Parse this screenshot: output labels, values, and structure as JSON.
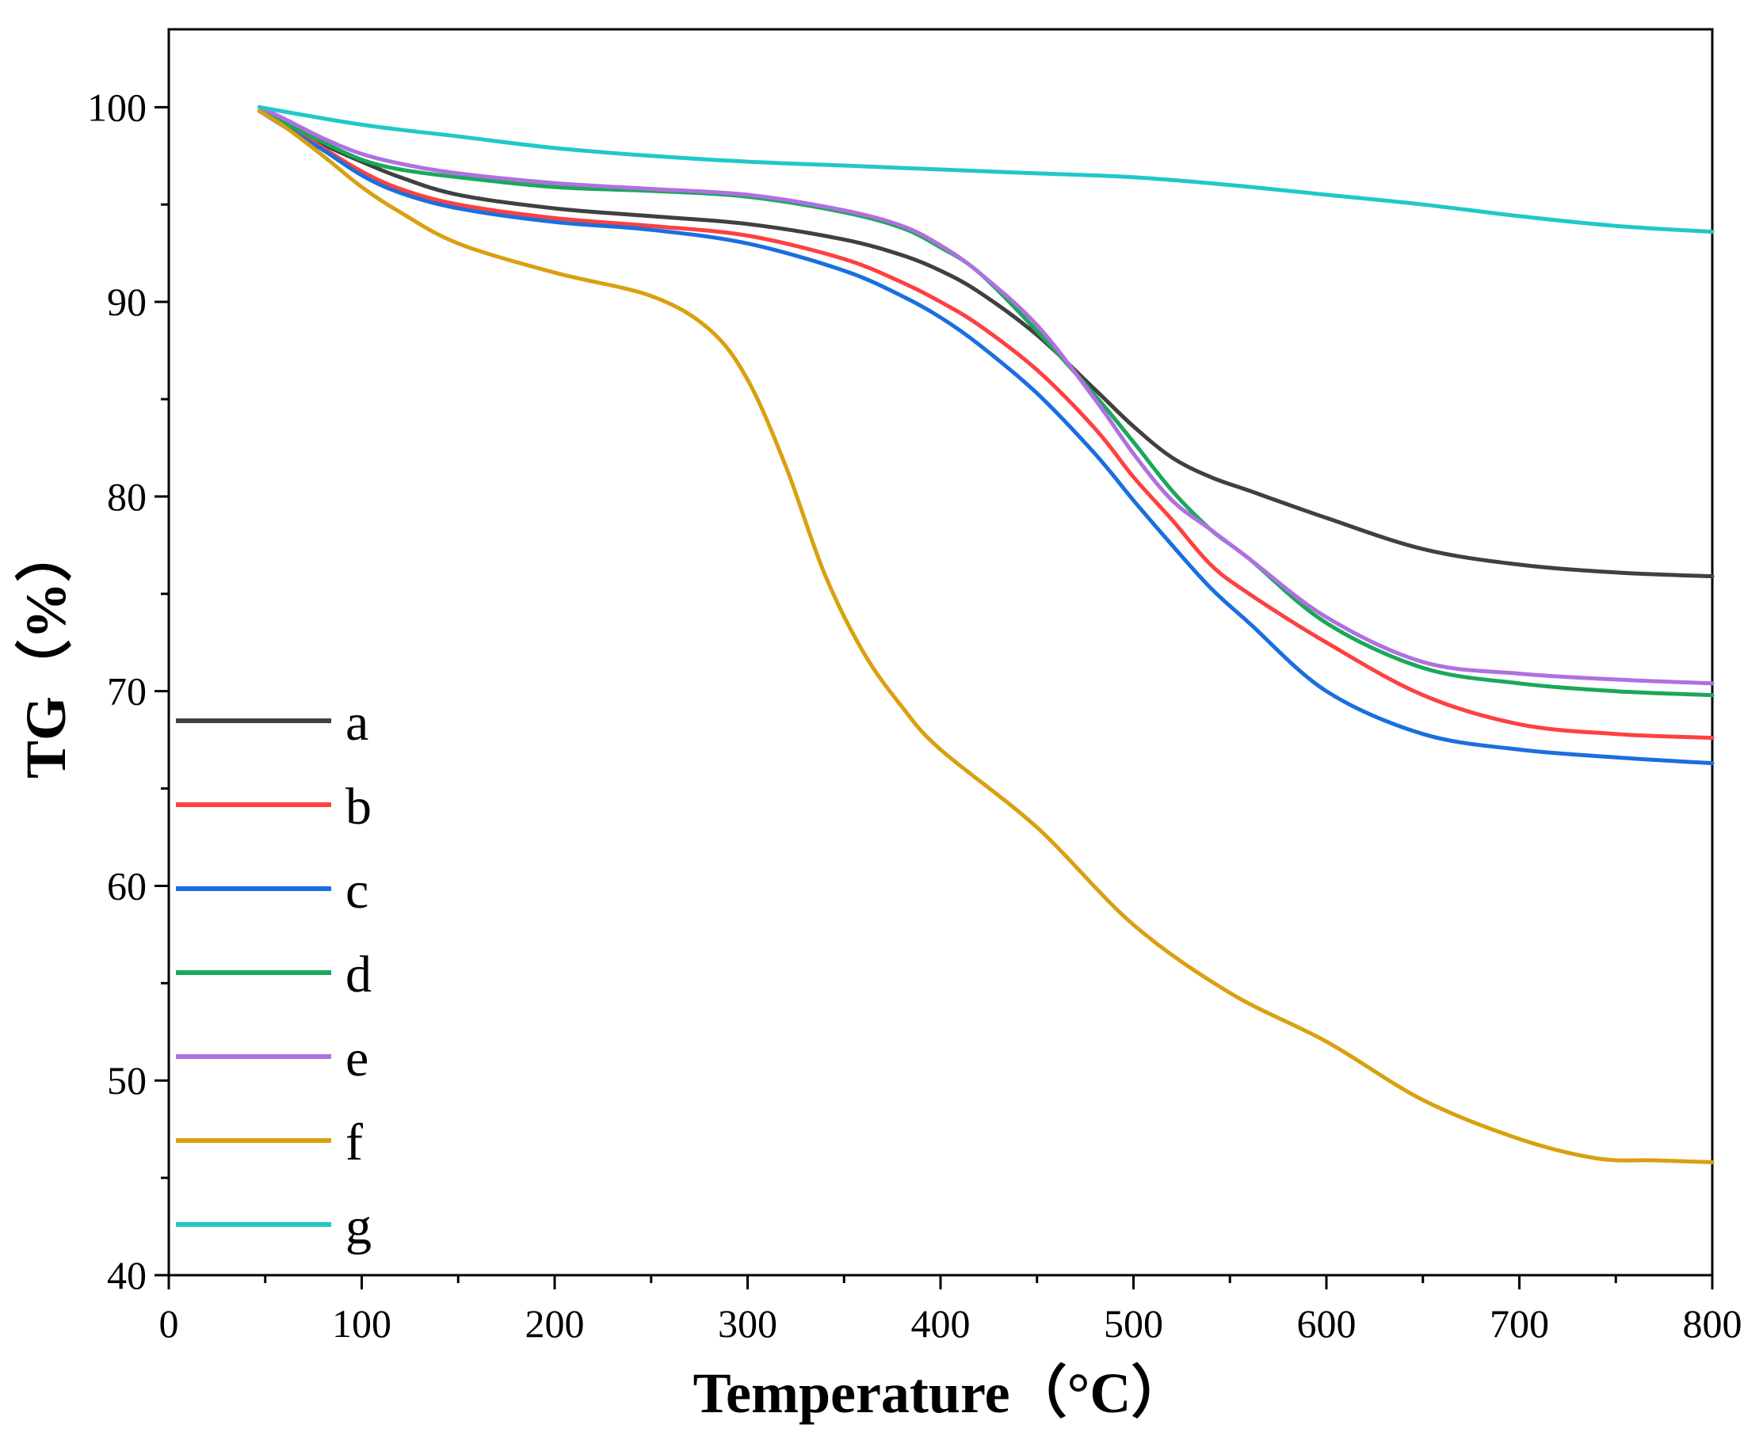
{
  "chart_data": {
    "type": "line",
    "title": "",
    "xlabel": "Temperature（°C）",
    "ylabel": "TG（%）",
    "xlim": [
      0,
      800
    ],
    "ylim": [
      40,
      104
    ],
    "xticks": [
      0,
      100,
      200,
      300,
      400,
      500,
      600,
      700,
      800
    ],
    "yticks": [
      40,
      50,
      60,
      70,
      80,
      90,
      100
    ],
    "xtick_labels": [
      "0",
      "100",
      "200",
      "300",
      "400",
      "500",
      "600",
      "700",
      "800"
    ],
    "ytick_labels": [
      "40",
      "50",
      "60",
      "70",
      "80",
      "90",
      "100"
    ],
    "grid": false,
    "legend_position": "left",
    "series": [
      {
        "name": "a",
        "color": "#404040",
        "x": [
          47,
          60,
          80,
          100,
          120,
          150,
          200,
          250,
          300,
          350,
          380,
          400,
          420,
          450,
          480,
          500,
          520,
          540,
          560,
          600,
          650,
          700,
          750,
          800
        ],
        "y": [
          100,
          99.3,
          98.1,
          97.2,
          96.4,
          95.5,
          94.8,
          94.4,
          94.0,
          93.2,
          92.4,
          91.6,
          90.5,
          88.3,
          85.5,
          83.6,
          82.0,
          81.0,
          80.3,
          78.9,
          77.3,
          76.5,
          76.1,
          75.9
        ]
      },
      {
        "name": "b",
        "color": "#ff4040",
        "x": [
          47,
          60,
          80,
          100,
          120,
          150,
          200,
          250,
          300,
          350,
          380,
          400,
          420,
          450,
          480,
          500,
          520,
          540,
          560,
          600,
          650,
          700,
          750,
          800
        ],
        "y": [
          99.8,
          99.2,
          97.9,
          96.7,
          95.8,
          95.0,
          94.3,
          93.9,
          93.4,
          92.2,
          91.0,
          90.0,
          88.8,
          86.5,
          83.5,
          81.0,
          78.8,
          76.5,
          75.0,
          72.5,
          69.8,
          68.3,
          67.8,
          67.6
        ]
      },
      {
        "name": "c",
        "color": "#1a6fe0",
        "x": [
          47,
          60,
          80,
          100,
          120,
          150,
          200,
          250,
          300,
          350,
          380,
          400,
          420,
          450,
          480,
          500,
          520,
          540,
          560,
          600,
          650,
          700,
          750,
          800
        ],
        "y": [
          99.8,
          99.0,
          97.8,
          96.5,
          95.6,
          94.8,
          94.1,
          93.7,
          93.0,
          91.6,
          90.3,
          89.2,
          87.8,
          85.3,
          82.2,
          79.8,
          77.5,
          75.3,
          73.5,
          70.0,
          67.8,
          67.0,
          66.6,
          66.3
        ]
      },
      {
        "name": "d",
        "color": "#1aa85a",
        "x": [
          47,
          60,
          80,
          100,
          120,
          150,
          200,
          250,
          300,
          350,
          380,
          400,
          420,
          450,
          480,
          500,
          520,
          540,
          560,
          600,
          650,
          700,
          750,
          800
        ],
        "y": [
          99.8,
          99.2,
          98.2,
          97.3,
          96.8,
          96.4,
          95.9,
          95.7,
          95.4,
          94.6,
          93.8,
          92.8,
          91.5,
          88.5,
          85.2,
          82.8,
          80.3,
          78.3,
          76.8,
          73.5,
          71.2,
          70.4,
          70.0,
          69.8
        ]
      },
      {
        "name": "e",
        "color": "#b070e0",
        "x": [
          47,
          60,
          80,
          100,
          120,
          150,
          200,
          250,
          300,
          350,
          380,
          400,
          420,
          450,
          480,
          500,
          520,
          540,
          560,
          600,
          650,
          700,
          750,
          800
        ],
        "y": [
          100,
          99.4,
          98.4,
          97.6,
          97.1,
          96.6,
          96.1,
          95.8,
          95.5,
          94.7,
          93.9,
          92.9,
          91.5,
          88.8,
          85.0,
          82.2,
          79.8,
          78.3,
          76.8,
          73.8,
          71.5,
          70.9,
          70.6,
          70.4
        ]
      },
      {
        "name": "f",
        "color": "#d9a010",
        "x": [
          47,
          60,
          80,
          100,
          120,
          150,
          200,
          250,
          280,
          300,
          320,
          340,
          360,
          380,
          400,
          450,
          500,
          550,
          600,
          650,
          700,
          740,
          770,
          800
        ],
        "y": [
          99.8,
          99.0,
          97.5,
          95.9,
          94.6,
          93.0,
          91.5,
          90.3,
          88.6,
          86.0,
          81.5,
          76.0,
          72.0,
          69.2,
          67.0,
          63.0,
          58.0,
          54.5,
          52.0,
          49.0,
          47.0,
          46.0,
          45.9,
          45.8
        ]
      },
      {
        "name": "g",
        "color": "#20c8c8",
        "x": [
          47,
          100,
          150,
          200,
          250,
          300,
          350,
          400,
          450,
          500,
          550,
          600,
          650,
          700,
          750,
          800
        ],
        "y": [
          100,
          99.1,
          98.5,
          97.9,
          97.5,
          97.2,
          97.0,
          96.8,
          96.6,
          96.4,
          96.0,
          95.5,
          95.0,
          94.4,
          93.9,
          93.6
        ]
      }
    ]
  }
}
